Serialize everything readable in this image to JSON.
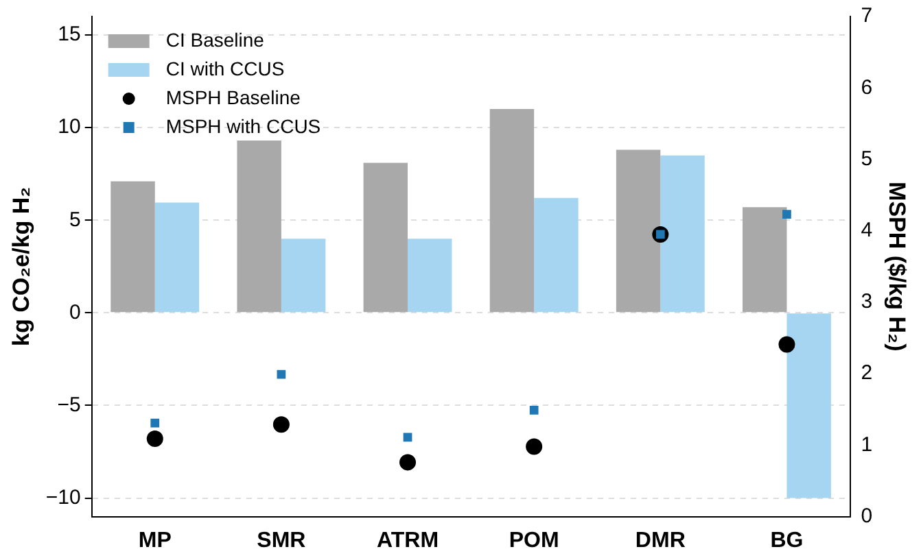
{
  "chart_data": {
    "type": "bar",
    "ylabel": "kg CO₂e/kg H₂",
    "y2label": "MSPH ($/kg H₂)",
    "categories": [
      "MP",
      "SMR",
      "ATRM",
      "POM",
      "DMR",
      "BG"
    ],
    "series": [
      {
        "name": "CI Baseline",
        "color": "#a9a9a9",
        "values": [
          7.1,
          9.3,
          8.1,
          11.0,
          8.8,
          5.7
        ]
      },
      {
        "name": "CI with CCUS",
        "color": "#a6d5f1",
        "values": [
          5.95,
          4.0,
          4.0,
          6.2,
          8.5,
          -10.0
        ]
      },
      {
        "name": "MSPH Baseline",
        "type": "scatter",
        "axis": "y2",
        "marker": "circle",
        "color": "#000000",
        "values": [
          1.09,
          1.29,
          0.76,
          0.98,
          3.95,
          2.41
        ]
      },
      {
        "name": "MSPH with CCUS",
        "type": "scatter",
        "axis": "y2",
        "marker": "square",
        "color": "#1f77b4",
        "values": [
          1.31,
          1.99,
          1.11,
          1.49,
          3.95,
          4.23
        ]
      }
    ],
    "ylim": [
      -11,
      16
    ],
    "yticks": [
      -10,
      -5,
      0,
      5,
      10,
      15
    ],
    "y2lim": [
      0,
      7
    ],
    "y2ticks": [
      0,
      1,
      2,
      3,
      4,
      5,
      6,
      7
    ],
    "grid": "y",
    "legend": "top left"
  }
}
